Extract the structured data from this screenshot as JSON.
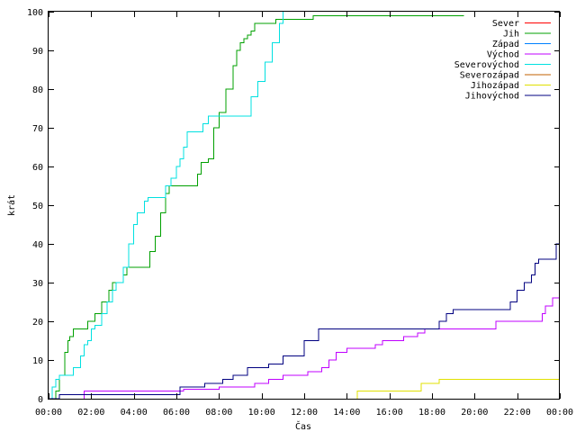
{
  "chart_data": {
    "type": "line",
    "title": "",
    "xlabel": "Čas",
    "ylabel": "krát",
    "xlim": [
      "00:00",
      "24:00"
    ],
    "ylim": [
      0,
      100
    ],
    "x_tick_labels": [
      "00:00",
      "02:00",
      "04:00",
      "06:00",
      "08:00",
      "10:00",
      "12:00",
      "14:00",
      "16:00",
      "18:00",
      "20:00",
      "22:00",
      "00:00"
    ],
    "y_tick_labels": [
      "0",
      "10",
      "20",
      "30",
      "40",
      "50",
      "60",
      "70",
      "80",
      "90",
      "100"
    ],
    "grid": false,
    "legend_position": "top-right",
    "series": [
      {
        "name": "Sever",
        "color": "#ff0000",
        "points": []
      },
      {
        "name": "Jih",
        "color": "#00a000",
        "points": [
          [
            "00:00",
            0
          ],
          [
            "00:15",
            0
          ],
          [
            "00:20",
            2
          ],
          [
            "00:30",
            6
          ],
          [
            "00:45",
            12
          ],
          [
            "00:55",
            15
          ],
          [
            "01:00",
            16
          ],
          [
            "01:10",
            18
          ],
          [
            "01:40",
            18
          ],
          [
            "01:50",
            20
          ],
          [
            "02:10",
            22
          ],
          [
            "02:30",
            25
          ],
          [
            "02:50",
            28
          ],
          [
            "03:00",
            30
          ],
          [
            "03:30",
            32
          ],
          [
            "03:40",
            34
          ],
          [
            "04:30",
            34
          ],
          [
            "04:45",
            38
          ],
          [
            "05:00",
            42
          ],
          [
            "05:15",
            48
          ],
          [
            "05:30",
            53
          ],
          [
            "05:40",
            55
          ],
          [
            "06:50",
            55
          ],
          [
            "07:00",
            58
          ],
          [
            "07:10",
            61
          ],
          [
            "07:30",
            62
          ],
          [
            "07:45",
            70
          ],
          [
            "08:00",
            74
          ],
          [
            "08:20",
            80
          ],
          [
            "08:40",
            86
          ],
          [
            "08:50",
            90
          ],
          [
            "09:00",
            92
          ],
          [
            "09:10",
            93
          ],
          [
            "09:20",
            94
          ],
          [
            "09:30",
            95
          ],
          [
            "09:40",
            97
          ],
          [
            "10:20",
            97
          ],
          [
            "10:40",
            98
          ],
          [
            "12:15",
            98
          ],
          [
            "12:25",
            99
          ],
          [
            "19:30",
            99
          ]
        ]
      },
      {
        "name": "Západ",
        "color": "#0080ff",
        "points": []
      },
      {
        "name": "Východ",
        "color": "#c000ff",
        "points": [
          [
            "01:40",
            0
          ],
          [
            "01:40",
            2
          ],
          [
            "06:10",
            2
          ],
          [
            "06:20",
            2.5
          ],
          [
            "08:00",
            3
          ],
          [
            "09:40",
            4
          ],
          [
            "10:20",
            5
          ],
          [
            "11:00",
            6
          ],
          [
            "12:10",
            7
          ],
          [
            "12:50",
            8
          ],
          [
            "13:10",
            10
          ],
          [
            "13:30",
            12
          ],
          [
            "14:00",
            13
          ],
          [
            "15:20",
            14
          ],
          [
            "15:40",
            15
          ],
          [
            "16:40",
            16
          ],
          [
            "17:20",
            17
          ],
          [
            "17:40",
            18
          ],
          [
            "20:40",
            18
          ],
          [
            "21:00",
            20
          ],
          [
            "23:00",
            20
          ],
          [
            "23:10",
            22
          ],
          [
            "23:20",
            24
          ],
          [
            "23:40",
            26
          ],
          [
            "24:00",
            26
          ]
        ]
      },
      {
        "name": "Severovýchod",
        "color": "#00e0e0",
        "points": [
          [
            "00:00",
            0
          ],
          [
            "00:10",
            3
          ],
          [
            "00:20",
            5
          ],
          [
            "00:30",
            6
          ],
          [
            "01:00",
            6
          ],
          [
            "01:10",
            8
          ],
          [
            "01:30",
            11
          ],
          [
            "01:40",
            14
          ],
          [
            "01:50",
            15
          ],
          [
            "02:00",
            18
          ],
          [
            "02:10",
            19
          ],
          [
            "02:30",
            22
          ],
          [
            "02:45",
            25
          ],
          [
            "03:00",
            28
          ],
          [
            "03:10",
            30
          ],
          [
            "03:30",
            34
          ],
          [
            "03:45",
            40
          ],
          [
            "04:00",
            45
          ],
          [
            "04:10",
            48
          ],
          [
            "04:30",
            51
          ],
          [
            "04:40",
            52
          ],
          [
            "05:15",
            52
          ],
          [
            "05:30",
            55
          ],
          [
            "05:45",
            57
          ],
          [
            "06:00",
            60
          ],
          [
            "06:10",
            62
          ],
          [
            "06:20",
            65
          ],
          [
            "06:30",
            69
          ],
          [
            "07:00",
            69
          ],
          [
            "07:15",
            71
          ],
          [
            "07:30",
            73
          ],
          [
            "09:20",
            73
          ],
          [
            "09:30",
            78
          ],
          [
            "09:50",
            82
          ],
          [
            "10:10",
            87
          ],
          [
            "10:30",
            92
          ],
          [
            "10:50",
            97
          ],
          [
            "11:00",
            100
          ]
        ]
      },
      {
        "name": "Severozápad",
        "color": "#c06000",
        "points": []
      },
      {
        "name": "Jihozápad",
        "color": "#e0e000",
        "points": [
          [
            "14:30",
            0
          ],
          [
            "14:30",
            2
          ],
          [
            "17:20",
            2
          ],
          [
            "17:30",
            4
          ],
          [
            "18:00",
            4
          ],
          [
            "18:20",
            5
          ],
          [
            "24:00",
            5
          ]
        ]
      },
      {
        "name": "Jihovýchod",
        "color": "#000080",
        "points": [
          [
            "00:00",
            0
          ],
          [
            "00:30",
            0
          ],
          [
            "00:30",
            1
          ],
          [
            "06:00",
            1
          ],
          [
            "06:10",
            3
          ],
          [
            "07:10",
            3
          ],
          [
            "07:20",
            4
          ],
          [
            "08:10",
            5
          ],
          [
            "08:40",
            6
          ],
          [
            "09:20",
            8
          ],
          [
            "10:20",
            9
          ],
          [
            "11:00",
            11
          ],
          [
            "11:50",
            11
          ],
          [
            "12:00",
            15
          ],
          [
            "12:40",
            18
          ],
          [
            "18:10",
            18
          ],
          [
            "18:20",
            20
          ],
          [
            "18:40",
            22
          ],
          [
            "19:00",
            23
          ],
          [
            "21:30",
            23
          ],
          [
            "21:40",
            25
          ],
          [
            "22:00",
            28
          ],
          [
            "22:20",
            30
          ],
          [
            "22:40",
            32
          ],
          [
            "22:50",
            35
          ],
          [
            "23:00",
            36
          ],
          [
            "23:40",
            36
          ],
          [
            "23:50",
            40
          ],
          [
            "24:00",
            40
          ]
        ]
      }
    ]
  }
}
